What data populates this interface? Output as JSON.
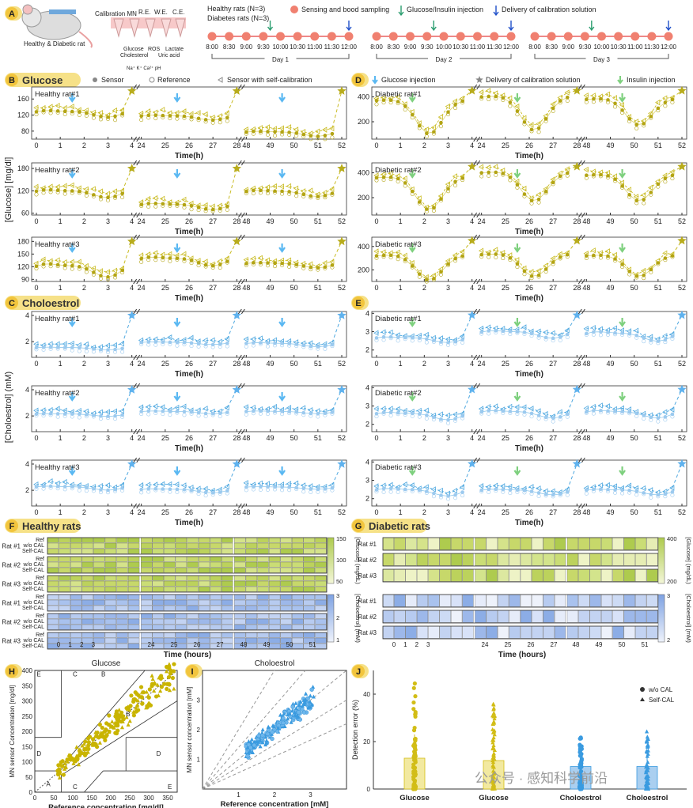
{
  "header": {
    "panel_letter": "A",
    "animal_caption": "Healthy & Diabetic rat",
    "mn_title": "Calibration MN",
    "electrodes": [
      "R.E.",
      "W.E.",
      "C.E."
    ],
    "analytes_1": [
      "Glucose",
      "Cholesterol",
      "Na⁺",
      "K⁺",
      "Ca²⁺"
    ],
    "analytes_2": [
      "ROS",
      "Uric acid",
      "Lactate",
      "pH"
    ],
    "healthy_n": "Healthy rats (N=3)",
    "diabetes_n": "Diabetes rats (N=3)",
    "legend_sampling": "Sensing and bood sampling",
    "legend_injection": "Glucose/Insulin injection",
    "legend_delivery": "Delivery of calibration solution",
    "timeline_ticks": [
      "8:00",
      "8:30",
      "9:00",
      "9:30",
      "10:00",
      "10:30",
      "11:00",
      "11:30",
      "12:00"
    ],
    "days": [
      "Day 1",
      "Day 2",
      "Day 3"
    ],
    "colors": {
      "sampling": "#f08070",
      "injection": "#2a9d6f",
      "delivery": "#1f4fc9"
    }
  },
  "panel_letters": {
    "B": "B",
    "C": "C",
    "D": "D",
    "E": "E",
    "F": "F",
    "G": "G",
    "H": "H",
    "I": "I",
    "J": "J"
  },
  "legends": {
    "B_title": "Glucose",
    "sensor": "Sensor",
    "reference": "Reference",
    "selfcal": "Sensor with self-calibration",
    "C_title": "Choloestrol",
    "glucose_injection": "Glucose injection",
    "delivery": "Delivery of calibration solution",
    "insulin_injection": "Insulin injection",
    "F_title": "Healthy rats",
    "G_title": "Diabetic rats"
  },
  "axis_labels": {
    "glucose_y": "[Glucose] [mg/dl]",
    "chol_y": "[Choloestrol] (mM)",
    "time": "Time(h)",
    "time_hours": "Time (hours)"
  },
  "chart_data": [
    {
      "type": "line",
      "id": "B1",
      "label": "Healthy rat#1",
      "x_segments": [
        [
          0,
          1,
          2,
          3,
          4
        ],
        [
          24,
          25,
          26,
          27,
          28
        ],
        [
          48,
          49,
          50,
          51,
          52
        ]
      ],
      "ylim": [
        60,
        190
      ],
      "yticks": [
        80,
        120,
        160
      ],
      "series": [
        {
          "name": "Sensor",
          "values": [
            [
              120,
              125,
              122,
              118,
              110,
              112,
              120,
              118,
              115,
              108,
              110,
              115,
              112,
              100,
              96,
              98,
              100,
              115,
              108,
              110,
              105,
              110,
              108,
              110,
              105
            ],
            [
              120,
              118,
              115,
              118,
              112,
              110,
              112,
              115,
              118,
              116,
              115,
              118,
              120,
              118,
              115,
              116,
              112,
              118,
              120,
              122,
              120,
              180
            ],
            [
              65,
              70,
              72,
              75,
              70,
              72,
              74,
              75,
              72,
              74,
              76,
              75,
              75,
              74,
              76,
              75,
              74,
              72,
              74,
              180
            ]
          ]
        }
      ]
    }
  ],
  "chart_data_note": [],
  "heatmaps": {
    "F_rows": [
      "Ref",
      "w/o CAL",
      "Self-CAL"
    ],
    "F_groups": [
      "Rat #1",
      "Rat #2",
      "Rat #3"
    ],
    "F_glucose_colorbar": [
      "150",
      "100",
      "50"
    ],
    "F_glucose_label": "[Glucose] (mg/dL)",
    "F_chol_colorbar": [
      "3",
      "2",
      "1"
    ],
    "F_chol_label": "[Choloestrol] (mM)",
    "G_groups": [
      "Rat #1",
      "Rat #2",
      "Rat #3"
    ],
    "G_glucose_colorbar": [
      "400",
      "200"
    ],
    "G_glucose_label": "[Glucose] (mg/dL)",
    "G_chol_colorbar": [
      "3",
      "2"
    ],
    "G_chol_label": "[Choloestrol] (mM)",
    "x_ticks": [
      "0",
      "1",
      "2",
      "3",
      "24",
      "25",
      "26",
      "27",
      "48",
      "49",
      "50",
      "51"
    ]
  },
  "clarke": {
    "H_title": "Glucose",
    "H_xlabel": "Reference concentration [mg/dl]",
    "H_ylabel": "MN sensor Concentration [mg/dl]",
    "H_xticks": [
      "0",
      "50",
      "100",
      "150",
      "200",
      "250",
      "300",
      "350"
    ],
    "H_yticks": [
      "0",
      "50",
      "100",
      "150",
      "200",
      "250",
      "300",
      "350",
      "400"
    ],
    "zones": [
      "A",
      "B",
      "B",
      "C",
      "C",
      "D",
      "D",
      "E",
      "E"
    ],
    "I_title": "Choloestrol",
    "I_xlabel": "Reference concentration [mM]",
    "I_ylabel": "MN sensor concentration [mM]",
    "I_xticks": [
      "1",
      "2",
      "3"
    ],
    "I_yticks": [
      "1",
      "2",
      "3"
    ]
  },
  "bars": {
    "ylabel": "Detection error (%)",
    "yticks": [
      "0",
      "20",
      "40"
    ],
    "categories": [
      "Glucose",
      "Glucose",
      "Choloestrol",
      "Choloestrol"
    ],
    "means": [
      13,
      12,
      9.5,
      9.5
    ],
    "errors": [
      10,
      8,
      5,
      7
    ],
    "legend_wo": "w/o CAL",
    "legend_self": "Self-CAL",
    "watermark": "公众号 · 感知科学前沿"
  }
}
